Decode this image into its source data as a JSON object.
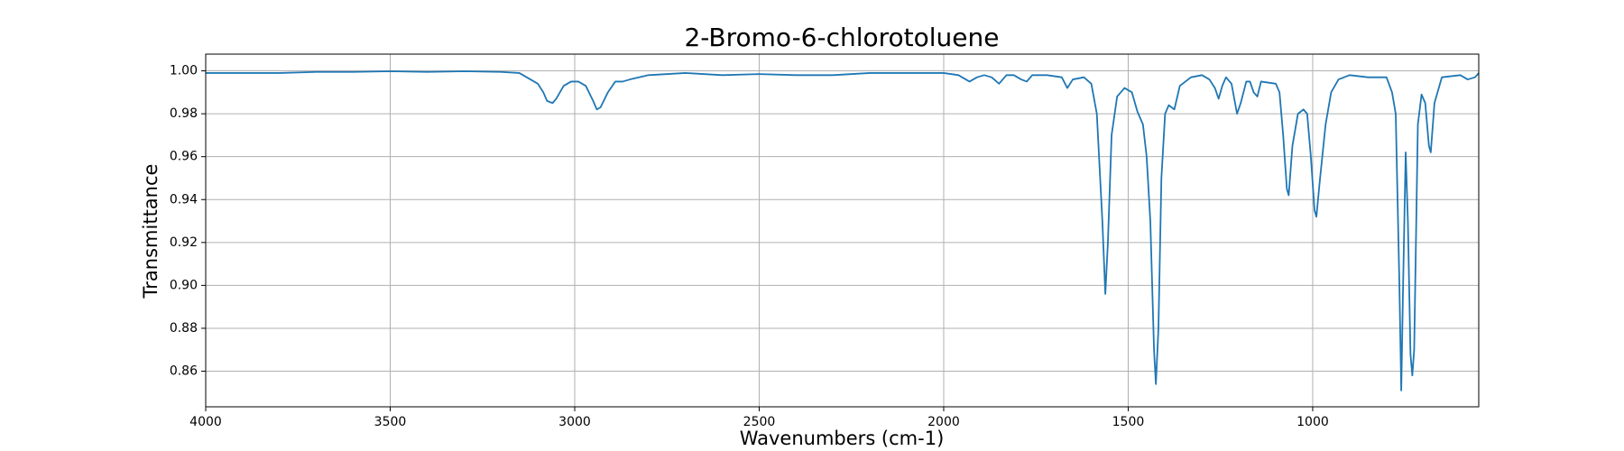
{
  "chart_data": {
    "type": "line",
    "title": "2-Bromo-6-chlorotoluene",
    "x_label": "Wavenumbers (cm-1)",
    "y_label": "Transmittance",
    "color": "#1f77b4",
    "grid": true,
    "xlim": [
      4000,
      550
    ],
    "ylim": [
      0.8434,
      1.0078
    ],
    "xticks": [
      4000,
      3500,
      3000,
      2500,
      2000,
      1500,
      1000
    ],
    "yticks": [
      0.86,
      0.88,
      {
        "value": 0.9,
        "label": "0.90"
      },
      0.92,
      0.94,
      0.96,
      0.98,
      {
        "value": 1,
        "label": "1.00"
      }
    ],
    "x": [
      4000,
      3900,
      3800,
      3700,
      3600,
      3500,
      3400,
      3300,
      3200,
      3150,
      3120,
      3100,
      3085,
      3075,
      3060,
      3050,
      3030,
      3010,
      2990,
      2970,
      2950,
      2940,
      2930,
      2910,
      2890,
      2870,
      2850,
      2800,
      2700,
      2600,
      2500,
      2400,
      2300,
      2200,
      2100,
      2000,
      1960,
      1930,
      1910,
      1890,
      1870,
      1850,
      1830,
      1810,
      1790,
      1775,
      1760,
      1720,
      1680,
      1665,
      1650,
      1620,
      1600,
      1585,
      1570,
      1562,
      1555,
      1545,
      1530,
      1510,
      1490,
      1475,
      1460,
      1450,
      1440,
      1430,
      1425,
      1418,
      1410,
      1400,
      1390,
      1375,
      1360,
      1330,
      1300,
      1280,
      1265,
      1255,
      1245,
      1235,
      1220,
      1205,
      1195,
      1180,
      1170,
      1160,
      1150,
      1140,
      1100,
      1090,
      1080,
      1070,
      1065,
      1055,
      1040,
      1025,
      1015,
      1005,
      995,
      990,
      980,
      965,
      950,
      930,
      900,
      850,
      800,
      785,
      775,
      765,
      760,
      755,
      748,
      742,
      735,
      730,
      725,
      715,
      705,
      695,
      685,
      680,
      670,
      650,
      600,
      580,
      560,
      550
    ],
    "values": [
      0.999,
      0.999,
      0.999,
      0.9995,
      0.9995,
      0.9998,
      0.9995,
      0.9998,
      0.9995,
      0.999,
      0.996,
      0.994,
      0.99,
      0.986,
      0.985,
      0.987,
      0.993,
      0.995,
      0.995,
      0.993,
      0.986,
      0.982,
      0.983,
      0.99,
      0.995,
      0.995,
      0.996,
      0.998,
      0.999,
      0.998,
      0.9985,
      0.998,
      0.998,
      0.999,
      0.999,
      0.999,
      0.998,
      0.995,
      0.997,
      0.998,
      0.997,
      0.994,
      0.998,
      0.998,
      0.996,
      0.995,
      0.998,
      0.998,
      0.997,
      0.992,
      0.996,
      0.997,
      0.994,
      0.98,
      0.93,
      0.896,
      0.92,
      0.97,
      0.988,
      0.992,
      0.99,
      0.981,
      0.975,
      0.96,
      0.93,
      0.87,
      0.854,
      0.88,
      0.95,
      0.98,
      0.984,
      0.982,
      0.993,
      0.997,
      0.998,
      0.996,
      0.992,
      0.987,
      0.993,
      0.997,
      0.994,
      0.98,
      0.985,
      0.995,
      0.995,
      0.99,
      0.988,
      0.995,
      0.994,
      0.99,
      0.97,
      0.945,
      0.942,
      0.965,
      0.98,
      0.982,
      0.98,
      0.96,
      0.935,
      0.932,
      0.95,
      0.975,
      0.99,
      0.996,
      0.998,
      0.997,
      0.997,
      0.99,
      0.98,
      0.9,
      0.851,
      0.9,
      0.962,
      0.93,
      0.868,
      0.858,
      0.87,
      0.975,
      0.989,
      0.985,
      0.965,
      0.962,
      0.985,
      0.997,
      0.998,
      0.996,
      0.997,
      0.999
    ]
  }
}
